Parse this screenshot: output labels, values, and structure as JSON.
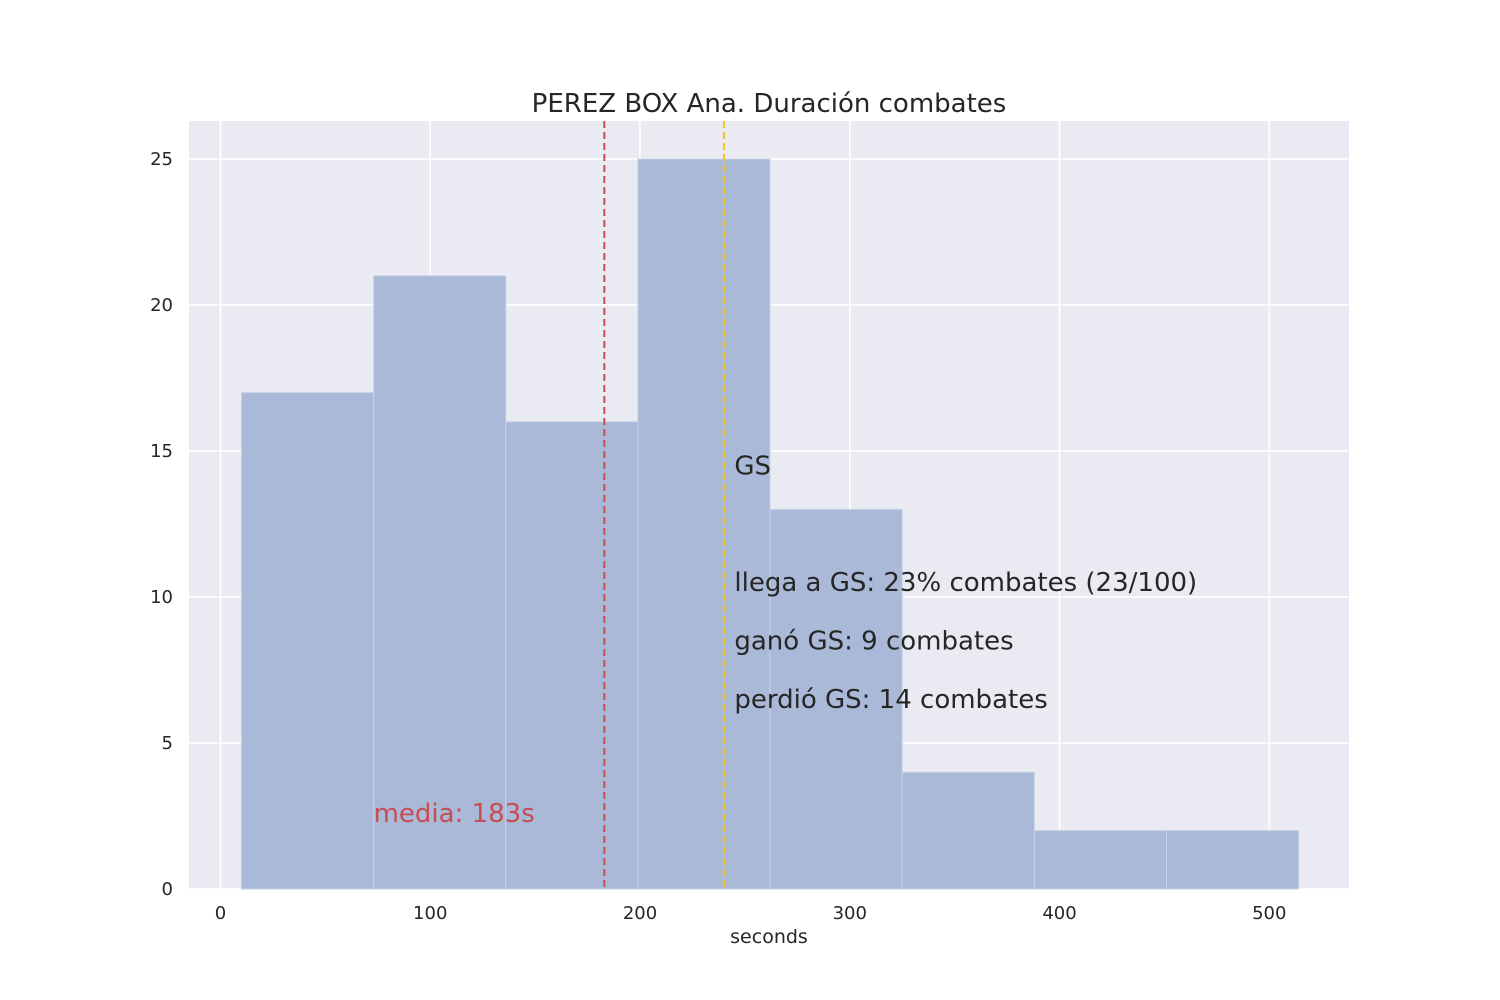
{
  "chart_data": {
    "type": "bar",
    "title": "PEREZ BOX Ana. Duración combates",
    "xlabel": "seconds",
    "ylabel": "",
    "xlim": [
      -15,
      538
    ],
    "ylim": [
      0,
      26.3
    ],
    "grid": true,
    "xticks": [
      0,
      100,
      200,
      300,
      400,
      500
    ],
    "yticks": [
      0,
      5,
      10,
      15,
      20,
      25
    ],
    "bins": [
      {
        "x0": 10,
        "x1": 73,
        "value": 17
      },
      {
        "x0": 73,
        "x1": 136,
        "value": 21
      },
      {
        "x0": 136,
        "x1": 199,
        "value": 16
      },
      {
        "x0": 199,
        "x1": 262,
        "value": 25
      },
      {
        "x0": 262,
        "x1": 325,
        "value": 13
      },
      {
        "x0": 325,
        "x1": 388,
        "value": 4
      },
      {
        "x0": 388,
        "x1": 451,
        "value": 2
      },
      {
        "x0": 451,
        "x1": 514,
        "value": 2
      }
    ],
    "mean_line": {
      "x": 183,
      "label": "media: 183s",
      "label_x": 73,
      "label_y": 2.3
    },
    "gs_line": {
      "x": 240,
      "label": "GS",
      "label_x": 245,
      "label_y": 14.2
    },
    "annotations": [
      {
        "text": "llega a GS: 23% combates (23/100)",
        "x": 245,
        "y": 10.2
      },
      {
        "text": "ganó GS: 9 combates",
        "x": 245,
        "y": 8.2
      },
      {
        "text": "perdió GS: 14 combates",
        "x": 245,
        "y": 6.2
      }
    ],
    "colors": {
      "bar": "#a9b9d7",
      "plot_bg": "#eaeaf2",
      "grid": "#ffffff",
      "mean_line": "#c44e52",
      "gs_line": "#f0c419"
    }
  }
}
